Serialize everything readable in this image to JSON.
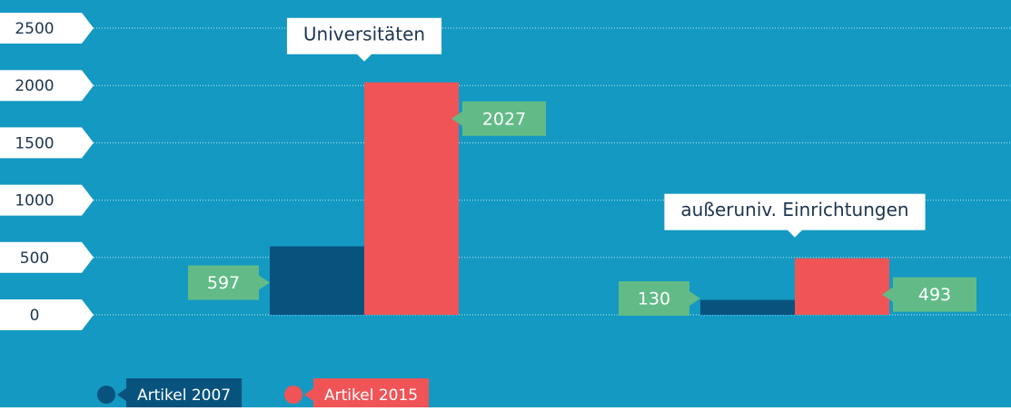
{
  "chart_data": {
    "type": "bar",
    "categories": [
      "Universitäten",
      "außeruniv. Einrichtungen"
    ],
    "series": [
      {
        "name": "Artikel 2007",
        "color": "#08537e",
        "values": [
          597,
          130
        ]
      },
      {
        "name": "Artikel 2015",
        "color": "#f05457",
        "values": [
          2027,
          493
        ]
      }
    ],
    "ylim": [
      0,
      2500
    ],
    "yticks": [
      0,
      500,
      1000,
      1500,
      2000,
      2500
    ],
    "grid": true,
    "label_color": "#62bb87",
    "background": "#1399c2"
  }
}
